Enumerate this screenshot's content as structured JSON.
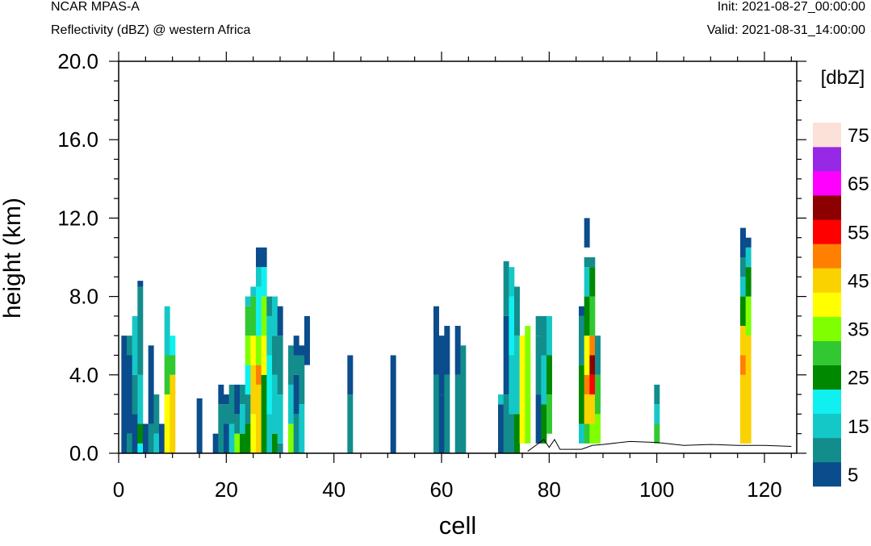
{
  "header": {
    "title": "NCAR MPAS-A",
    "subtitle": "Reflectivity (dBZ) @ western Africa",
    "init": "Init: 2021-08-27_00:00:00",
    "valid": "Valid: 2021-08-31_14:00:00"
  },
  "chart_data": {
    "type": "heatmap",
    "xlabel": "cell",
    "ylabel": "height (km)",
    "xlim": [
      0,
      126
    ],
    "ylim": [
      0,
      20
    ],
    "x_ticks": [
      "0",
      "20",
      "40",
      "60",
      "80",
      "100",
      "120"
    ],
    "y_ticks": [
      "0.0",
      "4.0",
      "8.0",
      "12.0",
      "16.0",
      "20.0"
    ],
    "colorbar": {
      "label": "[dbZ]",
      "levels": [
        5,
        10,
        15,
        20,
        25,
        30,
        35,
        40,
        45,
        50,
        55,
        60,
        65,
        70,
        75
      ],
      "tick_labels": [
        "5",
        "15",
        "25",
        "35",
        "45",
        "55",
        "65",
        "75"
      ],
      "colors": [
        "#0a4c8c",
        "#138c8c",
        "#15c8c8",
        "#10f0f0",
        "#008800",
        "#32c832",
        "#80ff00",
        "#ffff00",
        "#fad200",
        "#ff8000",
        "#ff0000",
        "#8c0000",
        "#ff00ff",
        "#9628e6",
        "#fce1d8"
      ]
    },
    "columns": [
      {
        "x": 1,
        "cells": [
          [
            0,
            6,
            5
          ]
        ]
      },
      {
        "x": 2,
        "cells": [
          [
            0,
            1,
            10
          ],
          [
            1,
            5,
            5
          ],
          [
            5,
            6,
            10
          ]
        ]
      },
      {
        "x": 3,
        "cells": [
          [
            0,
            2,
            5
          ],
          [
            2,
            4,
            10
          ],
          [
            4,
            7,
            15
          ]
        ]
      },
      {
        "x": 4,
        "cells": [
          [
            0,
            0.5,
            20
          ],
          [
            0.5,
            1.5,
            25
          ],
          [
            1.5,
            4,
            15
          ],
          [
            4,
            8.5,
            10
          ],
          [
            8.5,
            8.8,
            5
          ]
        ]
      },
      {
        "x": 5,
        "cells": [
          [
            0,
            1.5,
            5
          ]
        ]
      },
      {
        "x": 6,
        "cells": [
          [
            0,
            1.5,
            10
          ],
          [
            1.5,
            5.5,
            5
          ]
        ]
      },
      {
        "x": 7,
        "cells": [
          [
            0,
            1,
            15
          ],
          [
            1,
            3,
            10
          ]
        ]
      },
      {
        "x": 8,
        "cells": [
          [
            0,
            1.5,
            5
          ]
        ]
      },
      {
        "x": 9,
        "cells": [
          [
            0,
            3,
            40
          ],
          [
            3,
            5,
            30
          ],
          [
            5,
            7.5,
            15
          ]
        ]
      },
      {
        "x": 10,
        "cells": [
          [
            0,
            4,
            45
          ],
          [
            4,
            5,
            30
          ],
          [
            5,
            6,
            20
          ]
        ]
      },
      {
        "x": 15,
        "cells": [
          [
            0,
            2.8,
            5
          ]
        ]
      },
      {
        "x": 18,
        "cells": [
          [
            0,
            1,
            5
          ]
        ]
      },
      {
        "x": 19,
        "cells": [
          [
            0,
            2.5,
            10
          ],
          [
            2.5,
            3.5,
            5
          ]
        ]
      },
      {
        "x": 20,
        "cells": [
          [
            0,
            1.5,
            5
          ],
          [
            1.5,
            2.5,
            10
          ],
          [
            2.5,
            3,
            5
          ]
        ]
      },
      {
        "x": 21,
        "cells": [
          [
            0,
            1.5,
            15
          ],
          [
            1.5,
            3.5,
            10
          ]
        ]
      },
      {
        "x": 22,
        "cells": [
          [
            0,
            1,
            35
          ],
          [
            1,
            2,
            10
          ],
          [
            2,
            3.5,
            5
          ]
        ]
      },
      {
        "x": 23,
        "cells": [
          [
            0,
            1,
            25
          ],
          [
            1,
            2.5,
            15
          ],
          [
            2.5,
            3.5,
            10
          ]
        ]
      },
      {
        "x": 24,
        "cells": [
          [
            0,
            1.5,
            25
          ],
          [
            1.5,
            3,
            10
          ],
          [
            3,
            4.5,
            20
          ],
          [
            4.5,
            6,
            35
          ],
          [
            6,
            7.5,
            30
          ],
          [
            7.5,
            8,
            15
          ]
        ]
      },
      {
        "x": 25,
        "cells": [
          [
            0,
            2,
            40
          ],
          [
            2,
            4.5,
            45
          ],
          [
            4.5,
            6,
            40
          ],
          [
            6,
            8,
            30
          ],
          [
            8,
            8.5,
            15
          ]
        ]
      },
      {
        "x": 26,
        "cells": [
          [
            0,
            3.5,
            45
          ],
          [
            3.5,
            4.5,
            50
          ],
          [
            4.5,
            6,
            35
          ],
          [
            6,
            8.5,
            20
          ],
          [
            8.5,
            9.5,
            15
          ],
          [
            9.5,
            10.5,
            5
          ]
        ]
      },
      {
        "x": 27,
        "cells": [
          [
            0,
            4,
            25
          ],
          [
            4,
            6,
            40
          ],
          [
            6,
            8,
            35
          ],
          [
            8,
            9.5,
            20
          ],
          [
            9.5,
            10.5,
            5
          ]
        ]
      },
      {
        "x": 28,
        "cells": [
          [
            0,
            2,
            15
          ],
          [
            2,
            5,
            20
          ],
          [
            5,
            7,
            15
          ],
          [
            7,
            8,
            10
          ]
        ]
      },
      {
        "x": 29,
        "cells": [
          [
            0,
            1,
            25
          ],
          [
            1,
            4,
            15
          ],
          [
            4,
            6,
            10
          ],
          [
            6,
            8,
            15
          ]
        ]
      },
      {
        "x": 30,
        "cells": [
          [
            0,
            0.5,
            10
          ],
          [
            0.5,
            3,
            15
          ],
          [
            3,
            6,
            10
          ],
          [
            6,
            7.5,
            5
          ]
        ]
      },
      {
        "x": 32,
        "cells": [
          [
            0,
            1.5,
            35
          ],
          [
            1.5,
            3.5,
            15
          ],
          [
            3.5,
            5.5,
            10
          ]
        ]
      },
      {
        "x": 33,
        "cells": [
          [
            0,
            2,
            10
          ],
          [
            2,
            4,
            5
          ],
          [
            4,
            5,
            10
          ],
          [
            5,
            6,
            5
          ]
        ]
      },
      {
        "x": 34,
        "cells": [
          [
            0,
            2.5,
            15
          ],
          [
            2.5,
            5,
            10
          ],
          [
            5,
            5.5,
            5
          ]
        ]
      },
      {
        "x": 35,
        "cells": [
          [
            4.5,
            7,
            5
          ]
        ]
      },
      {
        "x": 43,
        "cells": [
          [
            0,
            3,
            10
          ],
          [
            3,
            5,
            5
          ]
        ]
      },
      {
        "x": 51,
        "cells": [
          [
            0,
            5,
            5
          ]
        ]
      },
      {
        "x": 59,
        "cells": [
          [
            0,
            4,
            10
          ],
          [
            4,
            7.5,
            5
          ]
        ]
      },
      {
        "x": 60,
        "cells": [
          [
            0,
            3,
            5
          ],
          [
            3,
            6,
            5
          ]
        ]
      },
      {
        "x": 61,
        "cells": [
          [
            0,
            4,
            10
          ],
          [
            4,
            6.5,
            5
          ]
        ]
      },
      {
        "x": 63,
        "cells": [
          [
            0,
            4,
            10
          ],
          [
            4,
            6.5,
            5
          ]
        ]
      },
      {
        "x": 64,
        "cells": [
          [
            0,
            5.5,
            10
          ]
        ]
      },
      {
        "x": 71,
        "cells": [
          [
            0,
            2.5,
            5
          ],
          [
            2.5,
            3,
            15
          ]
        ]
      },
      {
        "x": 72,
        "cells": [
          [
            0,
            3,
            10
          ],
          [
            3,
            7,
            5
          ],
          [
            7,
            9.8,
            10
          ]
        ]
      },
      {
        "x": 73,
        "cells": [
          [
            0,
            2,
            10
          ],
          [
            2,
            5,
            15
          ],
          [
            5,
            8,
            20
          ],
          [
            8,
            9.5,
            15
          ]
        ]
      },
      {
        "x": 74,
        "cells": [
          [
            0,
            2,
            25
          ],
          [
            2,
            6,
            15
          ],
          [
            6,
            8.5,
            10
          ]
        ]
      },
      {
        "x": 75,
        "cells": [
          [
            0.5,
            6,
            40
          ]
        ]
      },
      {
        "x": 76,
        "cells": [
          [
            0.5,
            6.5,
            35
          ]
        ]
      },
      {
        "x": 78,
        "cells": [
          [
            0.5,
            3,
            5
          ],
          [
            3,
            6,
            10
          ],
          [
            6,
            7,
            10
          ]
        ]
      },
      {
        "x": 79,
        "cells": [
          [
            0.5,
            2.5,
            25
          ],
          [
            2.5,
            5,
            15
          ],
          [
            5,
            7,
            10
          ]
        ]
      },
      {
        "x": 80,
        "cells": [
          [
            1,
            3,
            30
          ],
          [
            3,
            5,
            25
          ],
          [
            5,
            7,
            15
          ]
        ]
      },
      {
        "x": 86,
        "cells": [
          [
            0.5,
            1.5,
            15
          ],
          [
            1.5,
            4.5,
            25
          ],
          [
            4.5,
            7,
            10
          ],
          [
            7,
            7.5,
            5
          ]
        ]
      },
      {
        "x": 87,
        "cells": [
          [
            0.5,
            1.5,
            30
          ],
          [
            1.5,
            3,
            45
          ],
          [
            3,
            4,
            50
          ],
          [
            4,
            6,
            40
          ],
          [
            6,
            8,
            25
          ],
          [
            8,
            9.5,
            15
          ],
          [
            9.5,
            10,
            10
          ],
          [
            10.5,
            12,
            5
          ]
        ]
      },
      {
        "x": 88,
        "cells": [
          [
            0.5,
            1.5,
            35
          ],
          [
            1.5,
            3,
            45
          ],
          [
            3,
            4,
            55
          ],
          [
            4,
            5,
            60
          ],
          [
            5,
            6,
            50
          ],
          [
            6,
            8,
            30
          ],
          [
            8,
            9.5,
            25
          ],
          [
            9.5,
            10,
            10
          ]
        ]
      },
      {
        "x": 89,
        "cells": [
          [
            0.5,
            2,
            35
          ],
          [
            2,
            4,
            30
          ],
          [
            4,
            6,
            10
          ]
        ]
      },
      {
        "x": 100,
        "cells": [
          [
            0.5,
            1.5,
            30
          ],
          [
            1.5,
            2.5,
            15
          ],
          [
            2.5,
            3.5,
            10
          ]
        ]
      },
      {
        "x": 116,
        "cells": [
          [
            0.5,
            4,
            45
          ],
          [
            4,
            5,
            50
          ],
          [
            5,
            6.5,
            45
          ],
          [
            6.5,
            8,
            25
          ],
          [
            8,
            9,
            15
          ],
          [
            9,
            10,
            10
          ],
          [
            10,
            11.5,
            5
          ]
        ]
      },
      {
        "x": 117,
        "cells": [
          [
            0.5,
            3,
            45
          ],
          [
            3,
            6,
            45
          ],
          [
            6,
            8,
            35
          ],
          [
            8,
            9.5,
            25
          ],
          [
            9.5,
            10.5,
            15
          ],
          [
            10.5,
            11,
            5
          ]
        ]
      }
    ],
    "terrain": [
      [
        76,
        0.1
      ],
      [
        78,
        0.5
      ],
      [
        79,
        0.7
      ],
      [
        80,
        0.3
      ],
      [
        81,
        0.7
      ],
      [
        82,
        0.2
      ],
      [
        86,
        0.2
      ],
      [
        88,
        0.4
      ],
      [
        90,
        0.45
      ],
      [
        95,
        0.6
      ],
      [
        100,
        0.55
      ],
      [
        105,
        0.4
      ],
      [
        110,
        0.45
      ],
      [
        115,
        0.4
      ],
      [
        120,
        0.4
      ],
      [
        125,
        0.35
      ]
    ]
  }
}
